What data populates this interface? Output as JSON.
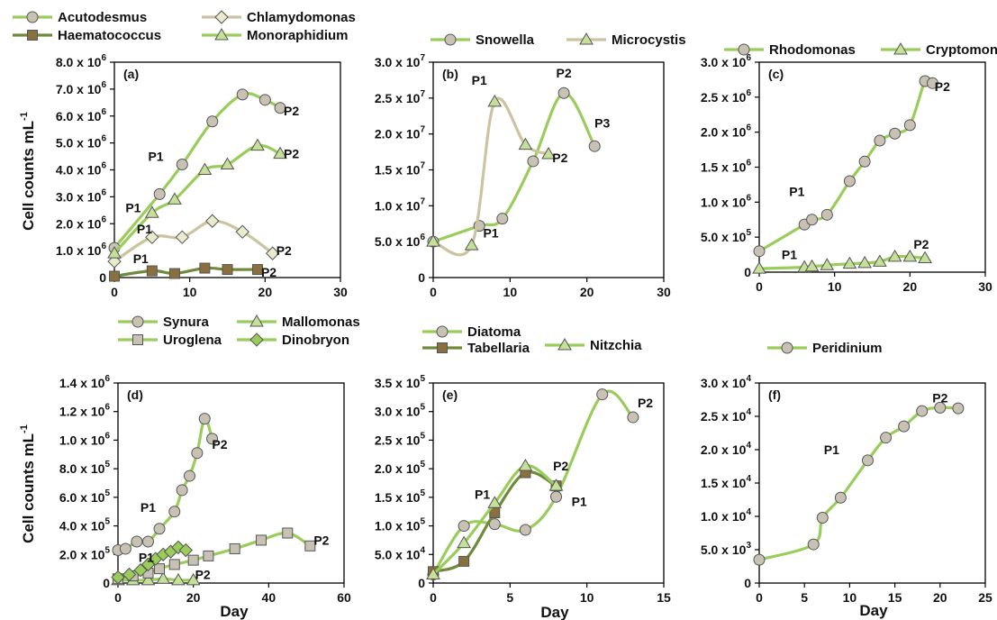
{
  "figure": {
    "ylabel_top": "Cell counts mL",
    "ylabel_bottom": "Cell counts mL",
    "ylabel_sup": "-1",
    "xlabel": "Day"
  },
  "colors": {
    "light_green": "#9acc5c",
    "dark_green": "#6d8b3a",
    "tan": "#ccc3a0",
    "olive_marker": "#8a7040",
    "marker_light": "#c6e09a",
    "diamond_light": "#e8eccc",
    "marker_grey": "#c8c2b4"
  },
  "chart_data": [
    {
      "id": "a",
      "panel_label": "(a)",
      "type": "line",
      "xlim": [
        0,
        30
      ],
      "ylim": [
        0,
        8000000
      ],
      "xticks": [
        "0",
        "10",
        "20",
        "30"
      ],
      "yticks": [
        {
          "v": 0,
          "m": "0",
          "e": ""
        },
        {
          "v": 1000000,
          "m": "1.0 x 10",
          "e": "6"
        },
        {
          "v": 2000000,
          "m": "2.0 x 10",
          "e": "6"
        },
        {
          "v": 3000000,
          "m": "3.0 x 10",
          "e": "6"
        },
        {
          "v": 4000000,
          "m": "4.0 x 10",
          "e": "6"
        },
        {
          "v": 5000000,
          "m": "5.0 x 10",
          "e": "6"
        },
        {
          "v": 6000000,
          "m": "6.0 x 10",
          "e": "6"
        },
        {
          "v": 7000000,
          "m": "7.0 x 10",
          "e": "6"
        },
        {
          "v": 8000000,
          "m": "8.0 x 10",
          "e": "6"
        }
      ],
      "series": [
        {
          "name": "Acutodesmus",
          "marker": "circle",
          "line": "light_green",
          "fill": "marker_grey",
          "x": [
            0,
            6,
            9,
            13,
            17,
            20,
            22
          ],
          "y": [
            1100000,
            3100000,
            4200000,
            5800000,
            6800000,
            6600000,
            6300000
          ]
        },
        {
          "name": "Chlamydomonas",
          "marker": "diamond",
          "line": "tan",
          "fill": "diamond_light",
          "x": [
            0,
            5,
            9,
            13,
            17,
            21
          ],
          "y": [
            600000,
            1500000,
            1500000,
            2100000,
            1700000,
            900000
          ]
        },
        {
          "name": "Haematococcus",
          "marker": "square",
          "line": "dark_green",
          "fill": "olive_marker",
          "x": [
            0,
            5,
            8,
            12,
            15,
            19
          ],
          "y": [
            50000,
            250000,
            150000,
            350000,
            300000,
            300000
          ]
        },
        {
          "name": "Monoraphidium",
          "marker": "triangle",
          "line": "light_green",
          "fill": "marker_light",
          "x": [
            0,
            5,
            8,
            12,
            15,
            19,
            22
          ],
          "y": [
            900000,
            2400000,
            2900000,
            4000000,
            4200000,
            4900000,
            4600000
          ]
        }
      ],
      "annotations": [
        {
          "text": "P1",
          "x": 5.5,
          "y": 4500000
        },
        {
          "text": "P2",
          "x": 23.5,
          "y": 6200000
        },
        {
          "text": "P2",
          "x": 23.5,
          "y": 4600000
        },
        {
          "text": "P1",
          "x": 2.5,
          "y": 2600000
        },
        {
          "text": "P1",
          "x": 4,
          "y": 1800000
        },
        {
          "text": "P2",
          "x": 22.5,
          "y": 1000000
        },
        {
          "text": "P1",
          "x": 3.5,
          "y": 700000
        },
        {
          "text": "P2",
          "x": 20.5,
          "y": 200000
        }
      ]
    },
    {
      "id": "b",
      "panel_label": "(b)",
      "type": "line",
      "xlim": [
        0,
        30
      ],
      "ylim": [
        0,
        30000000
      ],
      "xticks": [
        "0",
        "10",
        "20",
        "30"
      ],
      "yticks": [
        {
          "v": 0,
          "m": "0",
          "e": ""
        },
        {
          "v": 5000000,
          "m": "5.0 x 10",
          "e": "6"
        },
        {
          "v": 10000000,
          "m": "1.0 x 10",
          "e": "7"
        },
        {
          "v": 15000000,
          "m": "1.5 x 10",
          "e": "7"
        },
        {
          "v": 20000000,
          "m": "2.0 x 10",
          "e": "7"
        },
        {
          "v": 25000000,
          "m": "2.5 x 10",
          "e": "7"
        },
        {
          "v": 30000000,
          "m": "3.0 x 10",
          "e": "7"
        }
      ],
      "series": [
        {
          "name": "Snowella",
          "marker": "circle",
          "line": "light_green",
          "fill": "marker_grey",
          "x": [
            0,
            6,
            9,
            13,
            17,
            21
          ],
          "y": [
            5000000,
            7200000,
            8200000,
            16200000,
            25700000,
            18300000
          ]
        },
        {
          "name": "Microcystis",
          "marker": "triangle",
          "line": "tan",
          "fill": "marker_light",
          "x": [
            0,
            5,
            8,
            12,
            15
          ],
          "y": [
            5000000,
            4500000,
            24500000,
            18500000,
            17200000
          ]
        }
      ],
      "annotations": [
        {
          "text": "P1",
          "x": 6,
          "y": 27500000
        },
        {
          "text": "P2",
          "x": 17,
          "y": 28500000
        },
        {
          "text": "P3",
          "x": 22,
          "y": 21500000
        },
        {
          "text": "P2",
          "x": 16.5,
          "y": 16700000
        },
        {
          "text": "P1",
          "x": 7.5,
          "y": 6200000
        }
      ]
    },
    {
      "id": "c",
      "panel_label": "(c)",
      "type": "line",
      "xlim": [
        0,
        30
      ],
      "ylim": [
        0,
        3000000
      ],
      "xticks": [
        "0",
        "10",
        "20",
        "30"
      ],
      "yticks": [
        {
          "v": 0,
          "m": "0",
          "e": ""
        },
        {
          "v": 500000,
          "m": "5.0 x 10",
          "e": "5"
        },
        {
          "v": 1000000,
          "m": "1.0 x 10",
          "e": "6"
        },
        {
          "v": 1500000,
          "m": "1.5 x 10",
          "e": "6"
        },
        {
          "v": 2000000,
          "m": "2.0 x 10",
          "e": "6"
        },
        {
          "v": 2500000,
          "m": "2.5 x 10",
          "e": "6"
        },
        {
          "v": 3000000,
          "m": "3.0 x 10",
          "e": "6"
        }
      ],
      "series": [
        {
          "name": "Rhodomonas",
          "marker": "circle",
          "line": "light_green",
          "fill": "marker_grey",
          "x": [
            0,
            6,
            7,
            9,
            12,
            14,
            16,
            18,
            20,
            22,
            23
          ],
          "y": [
            300000,
            680000,
            750000,
            820000,
            1300000,
            1580000,
            1880000,
            1980000,
            2100000,
            2730000,
            2700000
          ]
        },
        {
          "name": "Cryptomonas",
          "marker": "triangle",
          "line": "light_green",
          "fill": "marker_light",
          "x": [
            0,
            6,
            7,
            9,
            12,
            14,
            16,
            18,
            20,
            22
          ],
          "y": [
            50000,
            70000,
            80000,
            100000,
            120000,
            130000,
            150000,
            220000,
            220000,
            200000
          ]
        }
      ],
      "annotations": [
        {
          "text": "P2",
          "x": 24.3,
          "y": 2650000
        },
        {
          "text": "P1",
          "x": 5,
          "y": 1150000
        },
        {
          "text": "P1",
          "x": 4,
          "y": 250000
        },
        {
          "text": "P2",
          "x": 21.5,
          "y": 400000
        }
      ]
    },
    {
      "id": "d",
      "panel_label": "(d)",
      "type": "line",
      "xlim": [
        0,
        60
      ],
      "ylim": [
        0,
        1400000
      ],
      "xticks": [
        "0",
        "20",
        "40",
        "60"
      ],
      "yticks": [
        {
          "v": 0,
          "m": "0",
          "e": ""
        },
        {
          "v": 200000,
          "m": "2.0 x 10",
          "e": "5"
        },
        {
          "v": 400000,
          "m": "4.0 x 10",
          "e": "5"
        },
        {
          "v": 600000,
          "m": "6.0 x 10",
          "e": "5"
        },
        {
          "v": 800000,
          "m": "8.0 x 10",
          "e": "5"
        },
        {
          "v": 1000000,
          "m": "1.0 x 10",
          "e": "6"
        },
        {
          "v": 1200000,
          "m": "1.2 x 10",
          "e": "6"
        },
        {
          "v": 1400000,
          "m": "1.4 x 10",
          "e": "6"
        }
      ],
      "series": [
        {
          "name": "Synura",
          "marker": "circle",
          "line": "light_green",
          "fill": "marker_grey",
          "x": [
            0,
            2,
            5,
            8,
            11,
            15,
            17,
            19,
            21,
            23,
            25
          ],
          "y": [
            230000,
            240000,
            290000,
            290000,
            380000,
            500000,
            650000,
            750000,
            910000,
            1150000,
            1010000
          ]
        },
        {
          "name": "Mallomonas",
          "marker": "triangle",
          "line": "light_green",
          "fill": "marker_light",
          "x": [
            0,
            4,
            8,
            12,
            16,
            20
          ],
          "y": [
            20000,
            20000,
            20000,
            30000,
            20000,
            20000
          ]
        },
        {
          "name": "Uroglena",
          "marker": "square",
          "line": "light_green",
          "fill": "marker_grey",
          "x": [
            0,
            4,
            8,
            11,
            15,
            20,
            24,
            31,
            38,
            45,
            51
          ],
          "y": [
            30000,
            50000,
            70000,
            100000,
            130000,
            160000,
            190000,
            240000,
            300000,
            350000,
            260000
          ]
        },
        {
          "name": "Dinobryon",
          "marker": "diamond",
          "line": "light_green",
          "fill": "light_green",
          "x": [
            0,
            3,
            6,
            8,
            10,
            12,
            14,
            16,
            18
          ],
          "y": [
            40000,
            60000,
            90000,
            130000,
            170000,
            200000,
            220000,
            250000,
            230000
          ]
        }
      ],
      "annotations": [
        {
          "text": "P2",
          "x": 27,
          "y": 970000
        },
        {
          "text": "P1",
          "x": 8,
          "y": 530000
        },
        {
          "text": "P1",
          "x": 7.5,
          "y": 180000
        },
        {
          "text": "P2",
          "x": 54,
          "y": 300000
        },
        {
          "text": "P2",
          "x": 22.5,
          "y": 60000
        }
      ]
    },
    {
      "id": "e",
      "panel_label": "(e)",
      "type": "line",
      "xlim": [
        0,
        15
      ],
      "ylim": [
        0,
        350000
      ],
      "xticks": [
        "0",
        "5",
        "10",
        "15"
      ],
      "yticks": [
        {
          "v": 0,
          "m": "0",
          "e": ""
        },
        {
          "v": 50000,
          "m": "5.0 x 10",
          "e": "4"
        },
        {
          "v": 100000,
          "m": "1.0 x 10",
          "e": "5"
        },
        {
          "v": 150000,
          "m": "1.5 x 10",
          "e": "5"
        },
        {
          "v": 200000,
          "m": "2.0 x 10",
          "e": "5"
        },
        {
          "v": 250000,
          "m": "2.5 x 10",
          "e": "5"
        },
        {
          "v": 300000,
          "m": "3.0 x 10",
          "e": "5"
        },
        {
          "v": 350000,
          "m": "3.5 x 10",
          "e": "5"
        }
      ],
      "series": [
        {
          "name": "Diatoma",
          "marker": "circle",
          "line": "light_green",
          "fill": "marker_grey",
          "x": [
            0,
            2,
            4,
            6,
            8,
            11,
            13
          ],
          "y": [
            15000,
            100000,
            103000,
            93000,
            151000,
            330000,
            290000
          ]
        },
        {
          "name": "Tabellaria",
          "marker": "square",
          "line": "dark_green",
          "fill": "olive_marker",
          "x": [
            0,
            2,
            4,
            6,
            8
          ],
          "y": [
            20000,
            38000,
            123000,
            193000,
            170000
          ]
        },
        {
          "name": "Nitzchia",
          "marker": "triangle",
          "line": "light_green",
          "fill": "marker_light",
          "x": [
            0,
            2,
            4,
            6,
            8
          ],
          "y": [
            15000,
            70000,
            140000,
            205000,
            170000
          ]
        }
      ],
      "annotations": [
        {
          "text": "P2",
          "x": 13.8,
          "y": 315000
        },
        {
          "text": "P2",
          "x": 8.3,
          "y": 205000
        },
        {
          "text": "P1",
          "x": 3.2,
          "y": 155000
        },
        {
          "text": "P1",
          "x": 9.5,
          "y": 143000
        }
      ]
    },
    {
      "id": "f",
      "panel_label": "(f)",
      "type": "line",
      "xlim": [
        0,
        25
      ],
      "ylim": [
        0,
        30000
      ],
      "xticks": [
        "0",
        "5",
        "10",
        "15",
        "20",
        "25"
      ],
      "yticks": [
        {
          "v": 0,
          "m": "0",
          "e": ""
        },
        {
          "v": 5000,
          "m": "5.0 x 10",
          "e": "3"
        },
        {
          "v": 10000,
          "m": "1.0 x 10",
          "e": "4"
        },
        {
          "v": 15000,
          "m": "1.5 x 10",
          "e": "4"
        },
        {
          "v": 20000,
          "m": "2.0 x 10",
          "e": "4"
        },
        {
          "v": 25000,
          "m": "2.5 x 10",
          "e": "4"
        },
        {
          "v": 30000,
          "m": "3.0 x 10",
          "e": "4"
        }
      ],
      "series": [
        {
          "name": "Peridinium",
          "marker": "circle",
          "line": "light_green",
          "fill": "marker_grey",
          "x": [
            0,
            6,
            7,
            9,
            12,
            14,
            16,
            18,
            20,
            22
          ],
          "y": [
            3500,
            5800,
            9800,
            12800,
            18400,
            21800,
            23500,
            25800,
            26300,
            26200
          ]
        }
      ],
      "annotations": [
        {
          "text": "P1",
          "x": 8,
          "y": 20000
        },
        {
          "text": "P2",
          "x": 20,
          "y": 27800
        }
      ]
    }
  ]
}
